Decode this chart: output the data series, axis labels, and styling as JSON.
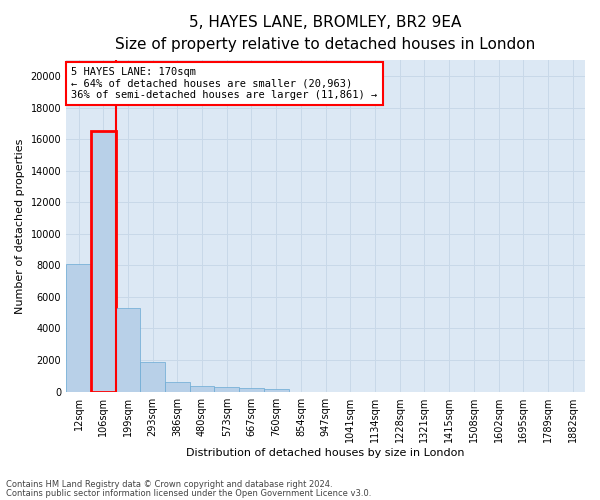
{
  "title_line1": "5, HAYES LANE, BROMLEY, BR2 9EA",
  "title_line2": "Size of property relative to detached houses in London",
  "xlabel": "Distribution of detached houses by size in London",
  "ylabel": "Number of detached properties",
  "categories": [
    "12sqm",
    "106sqm",
    "199sqm",
    "293sqm",
    "386sqm",
    "480sqm",
    "573sqm",
    "667sqm",
    "760sqm",
    "854sqm",
    "947sqm",
    "1041sqm",
    "1134sqm",
    "1228sqm",
    "1321sqm",
    "1415sqm",
    "1508sqm",
    "1602sqm",
    "1695sqm",
    "1789sqm",
    "1882sqm"
  ],
  "values": [
    8100,
    16500,
    5300,
    1850,
    620,
    350,
    270,
    210,
    170,
    0,
    0,
    0,
    0,
    0,
    0,
    0,
    0,
    0,
    0,
    0,
    0
  ],
  "bar_color": "#b8d0e8",
  "bar_edge_color": "#6aaad4",
  "highlight_bar_edge": "#ff0000",
  "highlight_bar_index": 1,
  "vline_x": 1.5,
  "highlight_color": "#ff0000",
  "annotation_title": "5 HAYES LANE: 170sqm",
  "annotation_line1": "← 64% of detached houses are smaller (20,963)",
  "annotation_line2": "36% of semi-detached houses are larger (11,861) →",
  "annotation_box_color": "#ffffff",
  "annotation_box_edge": "#ff0000",
  "ylim": [
    0,
    21000
  ],
  "yticks": [
    0,
    2000,
    4000,
    6000,
    8000,
    10000,
    12000,
    14000,
    16000,
    18000,
    20000
  ],
  "grid_color": "#c8d8e8",
  "plot_bg_color": "#dce8f4",
  "background_color": "#ffffff",
  "footer_line1": "Contains HM Land Registry data © Crown copyright and database right 2024.",
  "footer_line2": "Contains public sector information licensed under the Open Government Licence v3.0.",
  "title_fontsize": 11,
  "subtitle_fontsize": 9,
  "tick_fontsize": 7,
  "ylabel_fontsize": 8,
  "xlabel_fontsize": 8,
  "annotation_fontsize": 7.5,
  "footer_fontsize": 6
}
